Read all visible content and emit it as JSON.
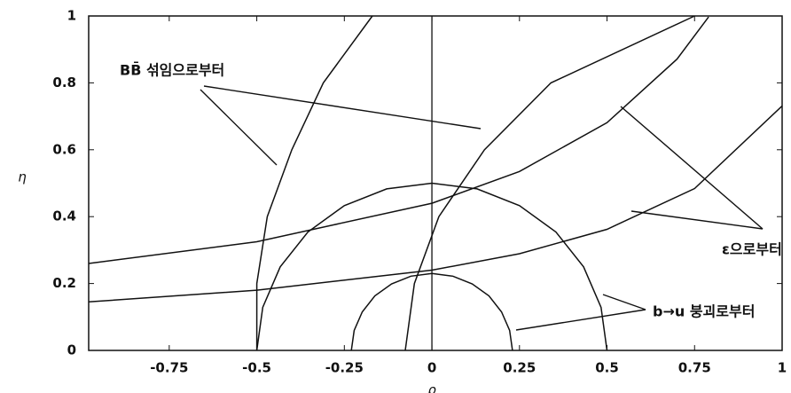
{
  "chart_data": {
    "type": "line",
    "x_label": "ρ",
    "y_label": "η",
    "xlim": [
      -0.98,
      1
    ],
    "ylim": [
      0,
      1
    ],
    "xticks": [
      -0.75,
      -0.5,
      -0.25,
      0,
      0.25,
      0.5,
      0.75,
      1
    ],
    "yticks": [
      0,
      0.2,
      0.4,
      0.6,
      0.8,
      1
    ],
    "color": "#111111",
    "series": [
      {
        "x": [
          0.23,
          0.222,
          0.199,
          0.163,
          0.115,
          0.06,
          0,
          -0.06,
          -0.115,
          -0.163,
          -0.199,
          -0.222,
          -0.23
        ],
        "values": [
          0,
          0.06,
          0.115,
          0.163,
          0.199,
          0.222,
          0.23,
          0.222,
          0.199,
          0.163,
          0.115,
          0.06,
          0
        ]
      },
      {
        "x": [
          0.5,
          0.483,
          0.433,
          0.354,
          0.25,
          0.129,
          0,
          -0.129,
          -0.25,
          -0.354,
          -0.433,
          -0.483,
          -0.5
        ],
        "values": [
          0,
          0.129,
          0.25,
          0.354,
          0.433,
          0.483,
          0.5,
          0.483,
          0.433,
          0.354,
          0.25,
          0.129,
          0
        ]
      },
      {
        "x": [
          -0.5,
          -0.5,
          -0.47,
          -0.4,
          -0.31,
          -0.17
        ],
        "values": [
          0,
          0.2,
          0.4,
          0.6,
          0.8,
          1
        ]
      },
      {
        "x": [
          -0.076,
          -0.05,
          0.02,
          0.15,
          0.34,
          0.75
        ],
        "values": [
          0,
          0.2,
          0.4,
          0.6,
          0.8,
          1
        ]
      },
      {
        "x": [
          -0.98,
          -0.5,
          0,
          0.25,
          0.5,
          0.75,
          1
        ],
        "values": [
          0.145,
          0.18,
          0.24,
          0.289,
          0.362,
          0.484,
          0.731
        ]
      },
      {
        "x": [
          -0.98,
          -0.5,
          0,
          0.25,
          0.5,
          0.7,
          0.79
        ],
        "values": [
          0.26,
          0.325,
          0.44,
          0.535,
          0.681,
          0.871,
          0.997
        ]
      }
    ],
    "annotations": [
      "BB̄ 섞임으로부터",
      "ε으로부터",
      "b→u 붕괴로부터"
    ]
  }
}
